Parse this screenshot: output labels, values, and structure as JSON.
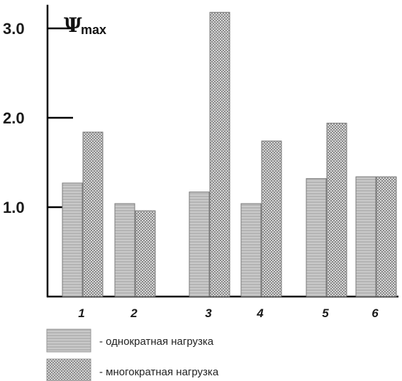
{
  "chart_data": {
    "type": "bar",
    "ylabel": "Ψ",
    "ylabel_sub": "max",
    "y_ticks": [
      "1.0",
      "2.0",
      "3.0"
    ],
    "categories": [
      "1",
      "2",
      "3",
      "4",
      "5",
      "6"
    ],
    "series": [
      {
        "name": "- однократная нагрузка",
        "values": [
          1.27,
          1.04,
          1.17,
          1.04,
          1.32,
          1.34
        ]
      },
      {
        "name": "- многократная нагрузка",
        "values": [
          1.84,
          0.96,
          3.18,
          1.74,
          1.94,
          1.34
        ]
      }
    ],
    "ylim": [
      0,
      3.2
    ],
    "grid": false,
    "legend_position": "bottom-left"
  }
}
